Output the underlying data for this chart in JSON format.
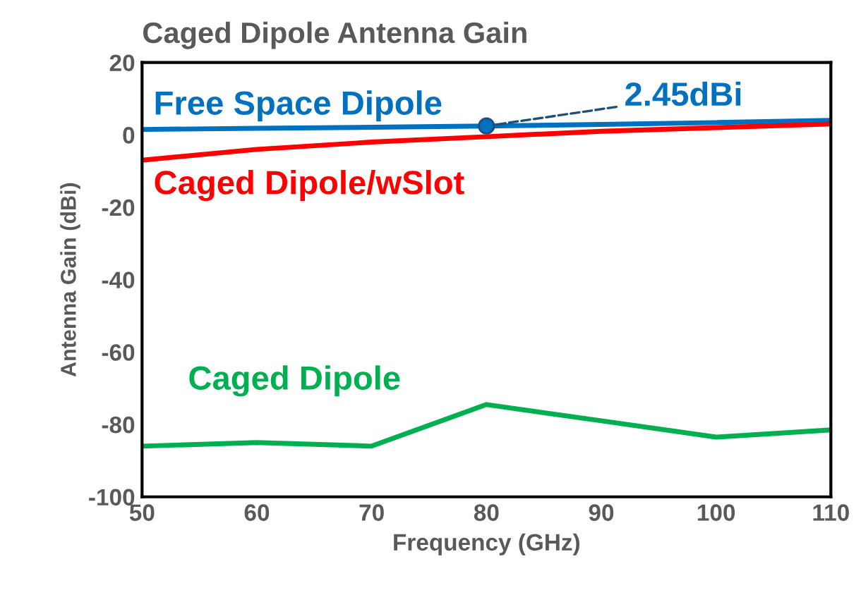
{
  "chart_data": {
    "type": "line",
    "title": "Caged Dipole Antenna Gain",
    "xlabel": "Frequency (GHz)",
    "ylabel": "Antenna Gain (dBi)",
    "x": [
      50,
      60,
      70,
      80,
      90,
      100,
      110
    ],
    "series": [
      {
        "name": "Free Space Dipole",
        "color": "#0070c0",
        "values": [
          1.5,
          1.8,
          2.1,
          2.45,
          2.9,
          3.4,
          4.0
        ]
      },
      {
        "name": "Caged Dipole/wSlot",
        "color": "#ff0000",
        "values": [
          -7,
          -4,
          -2,
          -0.5,
          1,
          2,
          3
        ]
      },
      {
        "name": "Caged Dipole",
        "color": "#00b050",
        "values": [
          -86,
          -85,
          -86,
          -74.5,
          -79,
          -83.5,
          -81.5
        ]
      },
      {
        "type": "scatter",
        "marker": "circle",
        "color": "#0070c0",
        "x": [
          80
        ],
        "values": [
          2.45
        ]
      }
    ],
    "annotations": [
      {
        "text": "2.45dBi",
        "x": 80,
        "y": 2.45
      }
    ],
    "xlim": [
      50,
      110
    ],
    "xticks": [
      50,
      60,
      70,
      80,
      90,
      100,
      110
    ],
    "ylim": [
      -100,
      20
    ],
    "yticks": [
      -100,
      -80,
      -60,
      -40,
      -20,
      0,
      20
    ],
    "grid": false,
    "legend": false,
    "marker": "none",
    "line_style": "solid"
  }
}
